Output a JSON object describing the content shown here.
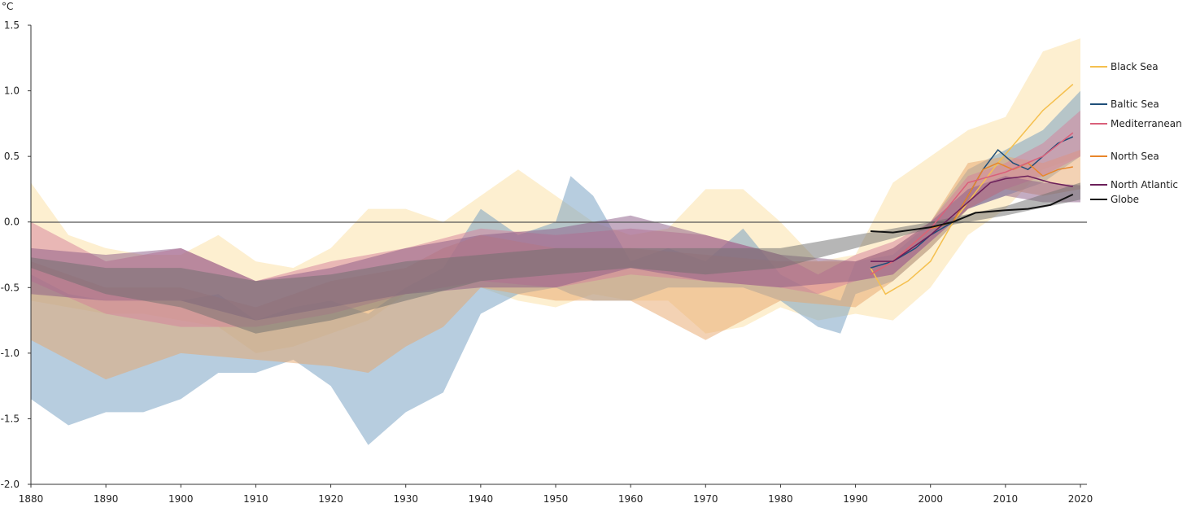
{
  "chart_data": {
    "type": "area",
    "title": "",
    "ylabel": "°C",
    "xlabel": "",
    "xlim": [
      1880,
      2021
    ],
    "ylim": [
      -2.0,
      1.5
    ],
    "xticks": [
      1880,
      1890,
      1900,
      1910,
      1920,
      1930,
      1940,
      1950,
      1960,
      1970,
      1980,
      1990,
      2000,
      2010,
      2020
    ],
    "yticks": [
      1.5,
      1.0,
      0.5,
      0.0,
      -0.5,
      -1.0,
      -1.5,
      -2.0
    ],
    "ytick_labels": [
      "1.5",
      "1.0",
      "0.5",
      "0.0",
      "-0.5",
      "-1.0",
      "-1.5",
      "-2.0"
    ],
    "xtick_labels": [
      "1880",
      "1890",
      "1900",
      "1910",
      "1920",
      "1930",
      "1940",
      "1950",
      "1960",
      "1970",
      "1980",
      "1990",
      "2000",
      "2010",
      "2020"
    ],
    "reference_line": 0.0,
    "legend_placement": "right",
    "series": [
      {
        "name": "Black Sea",
        "line_color": "#f5c04f",
        "band_color": "#fbd889",
        "band": [
          [
            1880,
            -0.6,
            0.3
          ],
          [
            1885,
            -0.65,
            -0.1
          ],
          [
            1890,
            -0.7,
            -0.2
          ],
          [
            1895,
            -0.7,
            -0.25
          ],
          [
            1900,
            -0.75,
            -0.25
          ],
          [
            1905,
            -0.8,
            -0.1
          ],
          [
            1910,
            -1.0,
            -0.3
          ],
          [
            1915,
            -0.95,
            -0.35
          ],
          [
            1920,
            -0.85,
            -0.2
          ],
          [
            1925,
            -0.75,
            0.1
          ],
          [
            1930,
            -0.55,
            0.1
          ],
          [
            1935,
            -0.5,
            0.0
          ],
          [
            1940,
            -0.5,
            0.2
          ],
          [
            1945,
            -0.6,
            0.4
          ],
          [
            1950,
            -0.65,
            0.2
          ],
          [
            1955,
            -0.55,
            0.0
          ],
          [
            1960,
            -0.6,
            -0.1
          ],
          [
            1965,
            -0.6,
            -0.05
          ],
          [
            1970,
            -0.85,
            0.25
          ],
          [
            1975,
            -0.8,
            0.25
          ],
          [
            1980,
            -0.65,
            0.0
          ],
          [
            1985,
            -0.75,
            -0.3
          ],
          [
            1990,
            -0.7,
            -0.25
          ],
          [
            1995,
            -0.75,
            0.3
          ],
          [
            2000,
            -0.5,
            0.5
          ],
          [
            2005,
            -0.1,
            0.7
          ],
          [
            2010,
            0.1,
            0.8
          ],
          [
            2015,
            0.4,
            1.3
          ],
          [
            2020,
            0.5,
            1.4
          ]
        ],
        "line": [
          [
            1992,
            -0.35
          ],
          [
            1994,
            -0.55
          ],
          [
            1997,
            -0.45
          ],
          [
            2000,
            -0.3
          ],
          [
            2003,
            0.0
          ],
          [
            2007,
            0.3
          ],
          [
            2009,
            0.45
          ],
          [
            2012,
            0.65
          ],
          [
            2015,
            0.85
          ],
          [
            2016,
            0.9
          ],
          [
            2019,
            1.05
          ]
        ]
      },
      {
        "name": "Baltic Sea",
        "line_color": "#1f4e79",
        "band_color": "#6f9cc0",
        "band": [
          [
            1880,
            -1.35,
            -0.4
          ],
          [
            1885,
            -1.55,
            -0.55
          ],
          [
            1890,
            -1.45,
            -0.6
          ],
          [
            1895,
            -1.45,
            -0.6
          ],
          [
            1900,
            -1.35,
            -0.6
          ],
          [
            1905,
            -1.15,
            -0.55
          ],
          [
            1910,
            -1.15,
            -0.75
          ],
          [
            1915,
            -1.05,
            -0.65
          ],
          [
            1920,
            -1.25,
            -0.6
          ],
          [
            1925,
            -1.7,
            -0.7
          ],
          [
            1930,
            -1.45,
            -0.5
          ],
          [
            1935,
            -1.3,
            -0.35
          ],
          [
            1940,
            -0.7,
            0.1
          ],
          [
            1945,
            -0.55,
            -0.1
          ],
          [
            1950,
            -0.5,
            0.0
          ],
          [
            1952,
            -0.55,
            0.35
          ],
          [
            1955,
            -0.6,
            0.2
          ],
          [
            1960,
            -0.6,
            -0.3
          ],
          [
            1965,
            -0.5,
            -0.2
          ],
          [
            1970,
            -0.5,
            -0.3
          ],
          [
            1975,
            -0.5,
            -0.05
          ],
          [
            1980,
            -0.6,
            -0.4
          ],
          [
            1985,
            -0.8,
            -0.55
          ],
          [
            1988,
            -0.85,
            -0.6
          ],
          [
            1990,
            -0.55,
            -0.3
          ],
          [
            1995,
            -0.45,
            -0.25
          ],
          [
            2000,
            -0.2,
            0.0
          ],
          [
            2005,
            0.1,
            0.4
          ],
          [
            2010,
            0.2,
            0.55
          ],
          [
            2015,
            0.3,
            0.7
          ],
          [
            2020,
            0.5,
            1.0
          ]
        ],
        "line": [
          [
            1992,
            -0.35
          ],
          [
            1995,
            -0.3
          ],
          [
            1998,
            -0.2
          ],
          [
            2000,
            -0.1
          ],
          [
            2003,
            0.0
          ],
          [
            2005,
            0.2
          ],
          [
            2007,
            0.4
          ],
          [
            2009,
            0.55
          ],
          [
            2011,
            0.45
          ],
          [
            2013,
            0.4
          ],
          [
            2015,
            0.5
          ],
          [
            2017,
            0.6
          ],
          [
            2019,
            0.65
          ]
        ]
      },
      {
        "name": "North Sea",
        "line_color": "#e8862a",
        "band_color": "#e7a56a",
        "band": [
          [
            1880,
            -0.9,
            -0.3
          ],
          [
            1890,
            -1.2,
            -0.5
          ],
          [
            1900,
            -1.0,
            -0.5
          ],
          [
            1910,
            -1.05,
            -0.65
          ],
          [
            1920,
            -1.1,
            -0.45
          ],
          [
            1925,
            -1.15,
            -0.4
          ],
          [
            1930,
            -0.95,
            -0.35
          ],
          [
            1935,
            -0.8,
            -0.2
          ],
          [
            1940,
            -0.5,
            -0.1
          ],
          [
            1950,
            -0.6,
            -0.2
          ],
          [
            1960,
            -0.6,
            -0.2
          ],
          [
            1970,
            -0.9,
            -0.25
          ],
          [
            1980,
            -0.6,
            -0.3
          ],
          [
            1990,
            -0.65,
            -0.3
          ],
          [
            1995,
            -0.45,
            -0.2
          ],
          [
            2000,
            -0.2,
            0.0
          ],
          [
            2005,
            0.1,
            0.45
          ],
          [
            2010,
            0.25,
            0.5
          ],
          [
            2015,
            0.2,
            0.45
          ],
          [
            2020,
            0.25,
            0.55
          ]
        ],
        "line": [
          [
            1992,
            -0.4
          ],
          [
            1995,
            -0.3
          ],
          [
            1998,
            -0.15
          ],
          [
            2000,
            -0.05
          ],
          [
            2003,
            0.0
          ],
          [
            2005,
            0.2
          ],
          [
            2007,
            0.4
          ],
          [
            2009,
            0.45
          ],
          [
            2011,
            0.4
          ],
          [
            2013,
            0.45
          ],
          [
            2015,
            0.35
          ],
          [
            2017,
            0.4
          ],
          [
            2019,
            0.42
          ]
        ]
      },
      {
        "name": "Mediterranean",
        "line_color": "#d9607a",
        "band_color": "#d5809a",
        "band": [
          [
            1880,
            -0.45,
            0.0
          ],
          [
            1890,
            -0.7,
            -0.3
          ],
          [
            1900,
            -0.8,
            -0.2
          ],
          [
            1910,
            -0.8,
            -0.45
          ],
          [
            1920,
            -0.7,
            -0.3
          ],
          [
            1930,
            -0.55,
            -0.2
          ],
          [
            1940,
            -0.45,
            -0.05
          ],
          [
            1950,
            -0.5,
            -0.1
          ],
          [
            1960,
            -0.4,
            -0.05
          ],
          [
            1970,
            -0.45,
            -0.1
          ],
          [
            1980,
            -0.5,
            -0.25
          ],
          [
            1985,
            -0.55,
            -0.4
          ],
          [
            1990,
            -0.45,
            -0.25
          ],
          [
            1995,
            -0.4,
            -0.15
          ],
          [
            2000,
            -0.15,
            0.0
          ],
          [
            2005,
            0.1,
            0.35
          ],
          [
            2010,
            0.25,
            0.45
          ],
          [
            2015,
            0.35,
            0.6
          ],
          [
            2020,
            0.5,
            0.85
          ]
        ],
        "line": [
          [
            1992,
            -0.4
          ],
          [
            1995,
            -0.3
          ],
          [
            2000,
            -0.05
          ],
          [
            2005,
            0.3
          ],
          [
            2010,
            0.38
          ],
          [
            2015,
            0.5
          ],
          [
            2019,
            0.68
          ]
        ]
      },
      {
        "name": "North Atlantic",
        "line_color": "#6b1f5a",
        "band_color": "#8a5a86",
        "band": [
          [
            1880,
            -0.55,
            -0.2
          ],
          [
            1890,
            -0.6,
            -0.25
          ],
          [
            1900,
            -0.6,
            -0.2
          ],
          [
            1910,
            -0.75,
            -0.45
          ],
          [
            1920,
            -0.65,
            -0.35
          ],
          [
            1930,
            -0.55,
            -0.2
          ],
          [
            1940,
            -0.5,
            -0.1
          ],
          [
            1950,
            -0.5,
            -0.05
          ],
          [
            1960,
            -0.35,
            0.05
          ],
          [
            1970,
            -0.45,
            -0.1
          ],
          [
            1980,
            -0.5,
            -0.25
          ],
          [
            1990,
            -0.45,
            -0.3
          ],
          [
            1995,
            -0.4,
            -0.2
          ],
          [
            2000,
            -0.15,
            0.0
          ],
          [
            2005,
            0.1,
            0.25
          ],
          [
            2010,
            0.2,
            0.35
          ],
          [
            2015,
            0.15,
            0.3
          ],
          [
            2020,
            0.15,
            0.28
          ]
        ],
        "line": [
          [
            1992,
            -0.3
          ],
          [
            1995,
            -0.3
          ],
          [
            2000,
            -0.1
          ],
          [
            2005,
            0.15
          ],
          [
            2008,
            0.3
          ],
          [
            2010,
            0.33
          ],
          [
            2013,
            0.35
          ],
          [
            2016,
            0.3
          ],
          [
            2019,
            0.27
          ]
        ]
      },
      {
        "name": "Globe",
        "line_color": "#111111",
        "band_color": "#6e6e6e",
        "band": [
          [
            1880,
            -0.35,
            -0.27
          ],
          [
            1890,
            -0.55,
            -0.35
          ],
          [
            1900,
            -0.65,
            -0.35
          ],
          [
            1910,
            -0.85,
            -0.45
          ],
          [
            1920,
            -0.75,
            -0.4
          ],
          [
            1930,
            -0.6,
            -0.3
          ],
          [
            1940,
            -0.45,
            -0.25
          ],
          [
            1950,
            -0.4,
            -0.2
          ],
          [
            1960,
            -0.35,
            -0.2
          ],
          [
            1970,
            -0.4,
            -0.2
          ],
          [
            1980,
            -0.35,
            -0.2
          ],
          [
            1990,
            -0.2,
            -0.1
          ],
          [
            2000,
            -0.05,
            0.0
          ],
          [
            2010,
            0.05,
            0.12
          ],
          [
            2020,
            0.17,
            0.3
          ]
        ],
        "line": [
          [
            1992,
            -0.07
          ],
          [
            1995,
            -0.08
          ],
          [
            2000,
            -0.04
          ],
          [
            2003,
            0.0
          ],
          [
            2006,
            0.07
          ],
          [
            2010,
            0.09
          ],
          [
            2013,
            0.1
          ],
          [
            2016,
            0.13
          ],
          [
            2019,
            0.21
          ]
        ]
      }
    ]
  }
}
